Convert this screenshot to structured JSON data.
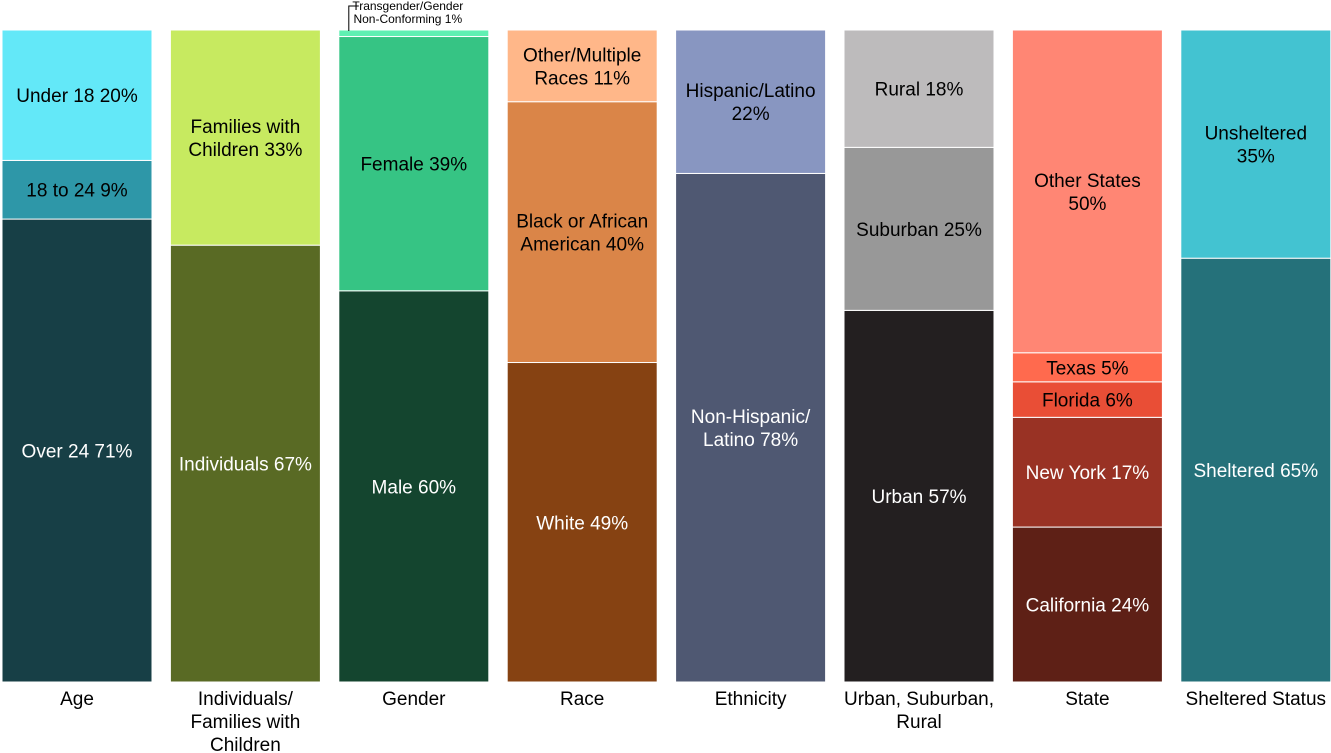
{
  "chart_data": {
    "type": "bar",
    "stacked": true,
    "normalized_percent": true,
    "grid": false,
    "legend": "none",
    "categories": [
      "Age",
      "Individuals/ Families with Children",
      "Gender",
      "Race",
      "Ethnicity",
      "Urban, Suburban, Rural",
      "State",
      "Sheltered Status"
    ],
    "bars": [
      {
        "category": "Age",
        "category_lines": [
          "Age"
        ],
        "segments": [
          {
            "label": "Over 24 71%",
            "lines": [
              "Over 24 71%"
            ],
            "value": 71,
            "color": "#173F46",
            "text_color": "#FFFFFF"
          },
          {
            "label": "18 to 24 9%",
            "lines": [
              "18 to 24 9%"
            ],
            "value": 9,
            "color": "#2E97A8",
            "text_color": "#000000"
          },
          {
            "label": "Under 18 20%",
            "lines": [
              "Under 18 20%"
            ],
            "value": 20,
            "color": "#63E8F8",
            "text_color": "#000000"
          }
        ]
      },
      {
        "category": "Individuals/ Families with Children",
        "category_lines": [
          "Individuals/",
          "Families with",
          "Children"
        ],
        "segments": [
          {
            "label": "Individuals 67%",
            "lines": [
              "Individuals 67%"
            ],
            "value": 67,
            "color": "#596A24",
            "text_color": "#FFFFFF"
          },
          {
            "label": "Families with Children 33%",
            "lines": [
              "Families with",
              "Children 33%"
            ],
            "value": 33,
            "color": "#C7EA60",
            "text_color": "#000000"
          }
        ]
      },
      {
        "category": "Gender",
        "category_lines": [
          "Gender"
        ],
        "segments": [
          {
            "label": "Male 60%",
            "lines": [
              "Male 60%"
            ],
            "value": 60,
            "color": "#14452F",
            "text_color": "#FFFFFF"
          },
          {
            "label": "Female 39%",
            "lines": [
              "Female 39%"
            ],
            "value": 39,
            "color": "#36C484",
            "text_color": "#000000"
          },
          {
            "label": "Transgender/Gender Non-Conforming 1%",
            "lines": [
              "Transgender/Gender",
              "Non-Conforming 1%"
            ],
            "value": 1,
            "color": "#5FF0B2",
            "text_color": "#000000",
            "callout": true
          }
        ]
      },
      {
        "category": "Race",
        "category_lines": [
          "Race"
        ],
        "segments": [
          {
            "label": "White 49%",
            "lines": [
              "White 49%"
            ],
            "value": 49,
            "color": "#864212",
            "text_color": "#FFFFFF"
          },
          {
            "label": "Black or African American 40%",
            "lines": [
              "Black or African",
              "American 40%"
            ],
            "value": 40,
            "color": "#DA8548",
            "text_color": "#000000"
          },
          {
            "label": "Other/Multiple Races 11%",
            "lines": [
              "Other/Multiple",
              "Races 11%"
            ],
            "value": 11,
            "color": "#FFB789",
            "text_color": "#000000"
          }
        ]
      },
      {
        "category": "Ethnicity",
        "category_lines": [
          "Ethnicity"
        ],
        "segments": [
          {
            "label": "Non-Hispanic/ Latino 78%",
            "lines": [
              "Non-Hispanic/",
              "Latino 78%"
            ],
            "value": 78,
            "color": "#4F5872",
            "text_color": "#FFFFFF"
          },
          {
            "label": "Hispanic/Latino 22%",
            "lines": [
              "Hispanic/Latino",
              "22%"
            ],
            "value": 22,
            "color": "#8896C1",
            "text_color": "#000000"
          }
        ]
      },
      {
        "category": "Urban, Suburban, Rural",
        "category_lines": [
          "Urban, Suburban,",
          "Rural"
        ],
        "segments": [
          {
            "label": "Urban 57%",
            "lines": [
              "Urban 57%"
            ],
            "value": 57,
            "color": "#231F20",
            "text_color": "#FFFFFF"
          },
          {
            "label": "Suburban 25%",
            "lines": [
              "Suburban 25%"
            ],
            "value": 25,
            "color": "#989898",
            "text_color": "#000000"
          },
          {
            "label": "Rural 18%",
            "lines": [
              "Rural 18%"
            ],
            "value": 18,
            "color": "#BDBBBC",
            "text_color": "#000000"
          }
        ]
      },
      {
        "category": "State",
        "category_lines": [
          "State"
        ],
        "segments": [
          {
            "label": "California 24%",
            "lines": [
              "California 24%"
            ],
            "value": 24,
            "color": "#5E2016",
            "text_color": "#FFFFFF"
          },
          {
            "label": "New York 17%",
            "lines": [
              "New York 17%"
            ],
            "value": 17,
            "color": "#993224",
            "text_color": "#FFFFFF"
          },
          {
            "label": "Florida 6%",
            "lines": [
              "Florida 6%"
            ],
            "value": 5.5,
            "color": "#E94E36",
            "text_color": "#000000"
          },
          {
            "label": "Texas 5%",
            "lines": [
              "Texas 5%"
            ],
            "value": 4.5,
            "color": "#FF6A4E",
            "text_color": "#000000"
          },
          {
            "label": "Other States 50%",
            "lines": [
              "Other States",
              "50%"
            ],
            "value": 50,
            "color": "#FF8674",
            "text_color": "#000000"
          }
        ]
      },
      {
        "category": "Sheltered Status",
        "category_lines": [
          "Sheltered Status"
        ],
        "segments": [
          {
            "label": "Sheltered 65%",
            "lines": [
              "Sheltered 65%"
            ],
            "value": 65,
            "color": "#25717A",
            "text_color": "#FFFFFF"
          },
          {
            "label": "Unsheltered 35%",
            "lines": [
              "Unsheltered",
              "35%"
            ],
            "value": 35,
            "color": "#43C3D1",
            "text_color": "#000000"
          }
        ]
      }
    ]
  }
}
